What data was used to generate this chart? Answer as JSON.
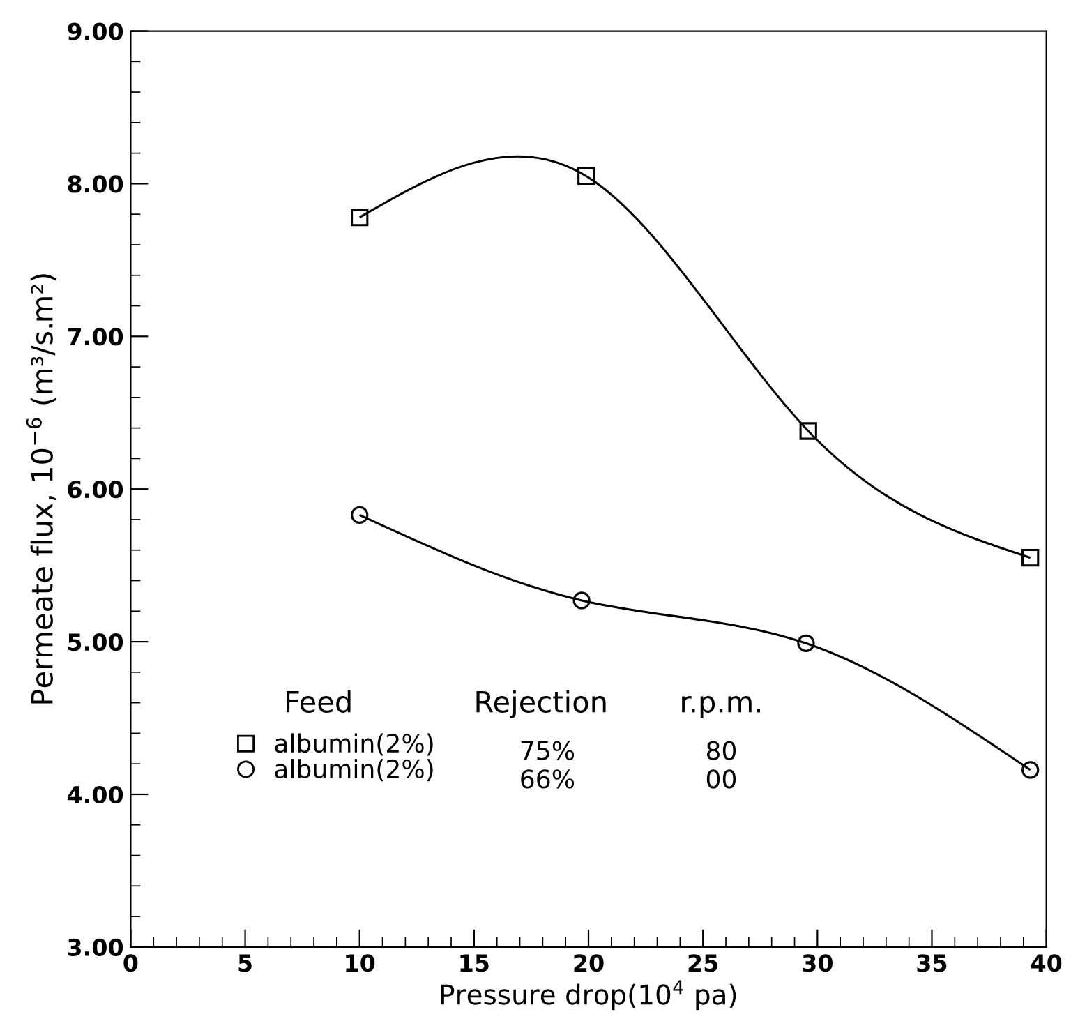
{
  "chart_data": {
    "type": "line",
    "xlabel": "Pressure drop(10$^{4}$ pa)",
    "ylabel": "Permeate flux, 10$^{−6}$ (m³/s.m²)",
    "xlim": [
      0,
      40
    ],
    "xticks": [
      0,
      5,
      10,
      15,
      20,
      25,
      30,
      35,
      40
    ],
    "ylim": [
      3,
      9
    ],
    "yticks": [
      {
        "value": 3,
        "label": "3.00"
      },
      {
        "value": 4,
        "label": "4.00"
      },
      {
        "value": 5,
        "label": "5.00"
      },
      {
        "value": 6,
        "label": "6.00"
      },
      {
        "value": 7,
        "label": "7.00"
      },
      {
        "value": 8,
        "label": "8.00"
      },
      {
        "value": 9,
        "label": "9.00"
      }
    ],
    "grid": false,
    "legend": "bottom",
    "line_style": "solid",
    "series": [
      {
        "name": "albumin(2%)",
        "color": "#000000",
        "marker": "square",
        "x": [
          10,
          19.9,
          29.6,
          39.3
        ],
        "values": [
          7.78,
          8.05,
          6.38,
          5.55
        ]
      },
      {
        "name": "albumin(2%)",
        "color": "#000000",
        "marker": "circle",
        "x": [
          10,
          19.7,
          29.5,
          39.3
        ],
        "values": [
          5.83,
          5.27,
          4.99,
          4.16
        ]
      }
    ],
    "annotations": [
      "Feed",
      "Rejection",
      "r.p.m.",
      "75%",
      "80",
      "66%",
      "00"
    ]
  }
}
